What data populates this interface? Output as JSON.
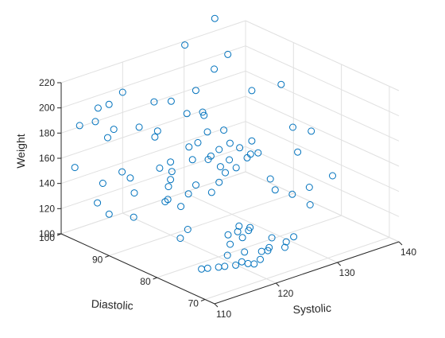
{
  "chart_data": {
    "type": "scatter",
    "title": "",
    "xlabel": "Systolic",
    "ylabel": "Diastolic",
    "zlabel": "Weight",
    "xlim": [
      110,
      140
    ],
    "ylim": [
      68,
      100
    ],
    "zlim": [
      100,
      220
    ],
    "xticks": [
      "110",
      "120",
      "130",
      "140"
    ],
    "yticks": [
      "70",
      "80",
      "90",
      "100"
    ],
    "zticks": [
      "100",
      "120",
      "140",
      "160",
      "180",
      "200",
      "220"
    ],
    "grid": true,
    "marker_color": "#0072bd",
    "points": [
      [
        111,
        72,
        119
      ],
      [
        112,
        72,
        118
      ],
      [
        113,
        71,
        119
      ],
      [
        114,
        71,
        118
      ],
      [
        115,
        70,
        119
      ],
      [
        116,
        70,
        120
      ],
      [
        117,
        70,
        117
      ],
      [
        118,
        70,
        115
      ],
      [
        119,
        70,
        117
      ],
      [
        116,
        73,
        120
      ],
      [
        118,
        72,
        121
      ],
      [
        120,
        71,
        120
      ],
      [
        121,
        71,
        119
      ],
      [
        123,
        70,
        120
      ],
      [
        122,
        72,
        118
      ],
      [
        124,
        71,
        121
      ],
      [
        124,
        74,
        119
      ],
      [
        126,
        72,
        120
      ],
      [
        120,
        78,
        121
      ],
      [
        120,
        75,
        124
      ],
      [
        121,
        75,
        128
      ],
      [
        120,
        76,
        127
      ],
      [
        121,
        77,
        128
      ],
      [
        122,
        76,
        127
      ],
      [
        118,
        75,
        122
      ],
      [
        115,
        80,
        130
      ],
      [
        113,
        79,
        128
      ],
      [
        110,
        90,
        133
      ],
      [
        112,
        95,
        130
      ],
      [
        118,
        88,
        135
      ],
      [
        116,
        86,
        140
      ],
      [
        117,
        84,
        138
      ],
      [
        119,
        85,
        143
      ],
      [
        121,
        86,
        145
      ],
      [
        116,
        95,
        148
      ],
      [
        115,
        92,
        150
      ],
      [
        119,
        91,
        153
      ],
      [
        120,
        90,
        158
      ],
      [
        122,
        88,
        160
      ],
      [
        123,
        86,
        162
      ],
      [
        120,
        90,
        144
      ],
      [
        121,
        91,
        147
      ],
      [
        122,
        84,
        141
      ],
      [
        124,
        85,
        144
      ],
      [
        125,
        85,
        150
      ],
      [
        125,
        86,
        153
      ],
      [
        127,
        83,
        162
      ],
      [
        126,
        84,
        154
      ],
      [
        128,
        82,
        166
      ],
      [
        125,
        88,
        158
      ],
      [
        124,
        85,
        170
      ],
      [
        125,
        82,
        175
      ],
      [
        128,
        88,
        150
      ],
      [
        126,
        81,
        170
      ],
      [
        116,
        98,
        170
      ],
      [
        117,
        98,
        175
      ],
      [
        113,
        100,
        181
      ],
      [
        114,
        98,
        186
      ],
      [
        116,
        100,
        190
      ],
      [
        117,
        99,
        193
      ],
      [
        120,
        100,
        196
      ],
      [
        122,
        96,
        192
      ],
      [
        124,
        95,
        191
      ],
      [
        118,
        94,
        182
      ],
      [
        119,
        92,
        176
      ],
      [
        121,
        94,
        174
      ],
      [
        125,
        93,
        183
      ],
      [
        126,
        91,
        186
      ],
      [
        127,
        92,
        180
      ],
      [
        126,
        90,
        172
      ],
      [
        128,
        95,
        193
      ],
      [
        131,
        95,
        205
      ],
      [
        134,
        96,
        210
      ],
      [
        134,
        91,
        190
      ],
      [
        138,
        90,
        190
      ],
      [
        136,
        85,
        168
      ],
      [
        139,
        85,
        160
      ],
      [
        134,
        91,
        150
      ],
      [
        131,
        93,
        160
      ],
      [
        132,
        93,
        148
      ],
      [
        136,
        84,
        150
      ],
      [
        137,
        78,
        140
      ],
      [
        134,
        79,
        134
      ],
      [
        131,
        75,
        132
      ],
      [
        132,
        80,
        130
      ],
      [
        130,
        81,
        135
      ],
      [
        130,
        82,
        142
      ],
      [
        114,
        90,
        124
      ],
      [
        118,
        95,
        128
      ],
      [
        122,
        93,
        130
      ],
      [
        116,
        99,
        132
      ],
      [
        113,
        101,
        146
      ],
      [
        126,
        92,
        160
      ],
      [
        123,
        90,
        165
      ],
      [
        135,
        100,
        230
      ],
      [
        127,
        96,
        229
      ]
    ]
  }
}
